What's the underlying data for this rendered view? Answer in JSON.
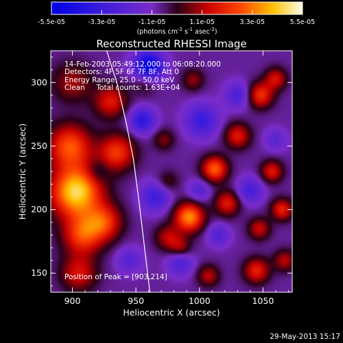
{
  "chart_data": {
    "type": "heatmap",
    "title": "Reconstructed RHESSI Image",
    "xlabel": "Heliocentric X (arcsec)",
    "ylabel": "Heliocentric Y (arcsec)",
    "xlim": [
      883,
      1073
    ],
    "ylim": [
      135,
      325
    ],
    "x_ticks": [
      900,
      950,
      1000,
      1050
    ],
    "y_ticks": [
      150,
      200,
      250,
      300
    ],
    "colorbar": {
      "ticks": [
        "-5.5e-05",
        "-3.3e-05",
        "-1.1e-05",
        "1.1e-05",
        "3.3e-05",
        "5.5e-05"
      ],
      "tick_values": [
        -5.5e-05,
        -3.3e-05,
        -1.1e-05,
        1.1e-05,
        3.3e-05,
        5.5e-05
      ],
      "range": [
        -5.5e-05,
        5.5e-05
      ],
      "label": "(photons cm",
      "label_sup1": "-2",
      "label_mid": " s",
      "label_sup2": "-1",
      "label_end": " asec",
      "label_sup3": "-2",
      "label_close": ")"
    },
    "annotations": [
      "14-Feb-2003 05:49:12.000 to 06:08:20.000",
      "Detectors: 4F 5F 6F 7F 8F, Att 0",
      "Energy Range: 25.0 - 50.0 keV",
      "Clean     Total counts: 1.63E+04"
    ],
    "peak_label": "Position of Peak = [903,214]",
    "peak": [
      903,
      214
    ],
    "solar_limb_points": [
      [
        927,
        325
      ],
      [
        935,
        300
      ],
      [
        942,
        270
      ],
      [
        948,
        240
      ],
      [
        952,
        210
      ],
      [
        955,
        185
      ],
      [
        958,
        160
      ],
      [
        961,
        135
      ]
    ],
    "sources": [
      {
        "x": 903,
        "y": 214,
        "amp": 5.5e-05,
        "sigma": 14
      },
      {
        "x": 898,
        "y": 250,
        "amp": 3.6e-05,
        "sigma": 12
      },
      {
        "x": 908,
        "y": 180,
        "amp": 3.3e-05,
        "sigma": 11
      },
      {
        "x": 925,
        "y": 190,
        "amp": 3e-05,
        "sigma": 10
      },
      {
        "x": 935,
        "y": 245,
        "amp": 3.2e-05,
        "sigma": 10
      },
      {
        "x": 930,
        "y": 285,
        "amp": 2.6e-05,
        "sigma": 9
      },
      {
        "x": 900,
        "y": 300,
        "amp": 1.8e-05,
        "sigma": 11
      },
      {
        "x": 905,
        "y": 150,
        "amp": 2.4e-05,
        "sigma": 10
      },
      {
        "x": 957,
        "y": 300,
        "amp": 1.2e-05,
        "sigma": 7
      },
      {
        "x": 992,
        "y": 194,
        "amp": 4.4e-05,
        "sigma": 8
      },
      {
        "x": 975,
        "y": 178,
        "amp": 2e-05,
        "sigma": 7
      },
      {
        "x": 1012,
        "y": 232,
        "amp": 3.8e-05,
        "sigma": 7
      },
      {
        "x": 1022,
        "y": 205,
        "amp": 2.6e-05,
        "sigma": 7
      },
      {
        "x": 1030,
        "y": 258,
        "amp": 2.6e-05,
        "sigma": 7
      },
      {
        "x": 1048,
        "y": 290,
        "amp": 3.1e-05,
        "sigma": 7
      },
      {
        "x": 1060,
        "y": 303,
        "amp": 2.4e-05,
        "sigma": 6
      },
      {
        "x": 1057,
        "y": 230,
        "amp": 2.6e-05,
        "sigma": 6
      },
      {
        "x": 1065,
        "y": 200,
        "amp": 2.8e-05,
        "sigma": 6
      },
      {
        "x": 1047,
        "y": 185,
        "amp": 2.2e-05,
        "sigma": 6
      },
      {
        "x": 1045,
        "y": 152,
        "amp": 2.8e-05,
        "sigma": 7
      },
      {
        "x": 1007,
        "y": 148,
        "amp": 2e-05,
        "sigma": 6
      },
      {
        "x": 985,
        "y": 170,
        "amp": 1.8e-05,
        "sigma": 6
      },
      {
        "x": 972,
        "y": 255,
        "amp": 1.4e-05,
        "sigma": 6
      },
      {
        "x": 995,
        "y": 302,
        "amp": 1.6e-05,
        "sigma": 6
      },
      {
        "x": 1067,
        "y": 160,
        "amp": 2e-05,
        "sigma": 6
      },
      {
        "x": 975,
        "y": 222,
        "amp": 1.2e-05,
        "sigma": 6
      },
      {
        "x": 960,
        "y": 313,
        "amp": -4.8e-05,
        "sigma": 8
      },
      {
        "x": 955,
        "y": 270,
        "amp": -3e-05,
        "sigma": 7
      },
      {
        "x": 965,
        "y": 210,
        "amp": -2.4e-05,
        "sigma": 8
      },
      {
        "x": 1002,
        "y": 270,
        "amp": -2.6e-05,
        "sigma": 9
      },
      {
        "x": 1030,
        "y": 290,
        "amp": -2e-05,
        "sigma": 7
      },
      {
        "x": 1040,
        "y": 215,
        "amp": -2.2e-05,
        "sigma": 7
      },
      {
        "x": 1000,
        "y": 215,
        "amp": -1.6e-05,
        "sigma": 6
      },
      {
        "x": 985,
        "y": 158,
        "amp": -2e-05,
        "sigma": 7
      },
      {
        "x": 1015,
        "y": 180,
        "amp": -1.8e-05,
        "sigma": 6
      },
      {
        "x": 945,
        "y": 160,
        "amp": -1.6e-05,
        "sigma": 7
      },
      {
        "x": 920,
        "y": 230,
        "amp": -1e-05,
        "sigma": 6
      },
      {
        "x": 1060,
        "y": 255,
        "amp": -1.4e-05,
        "sigma": 6
      }
    ],
    "background": -8e-06
  },
  "footer": {
    "date": "29-May-2013 15:17"
  }
}
